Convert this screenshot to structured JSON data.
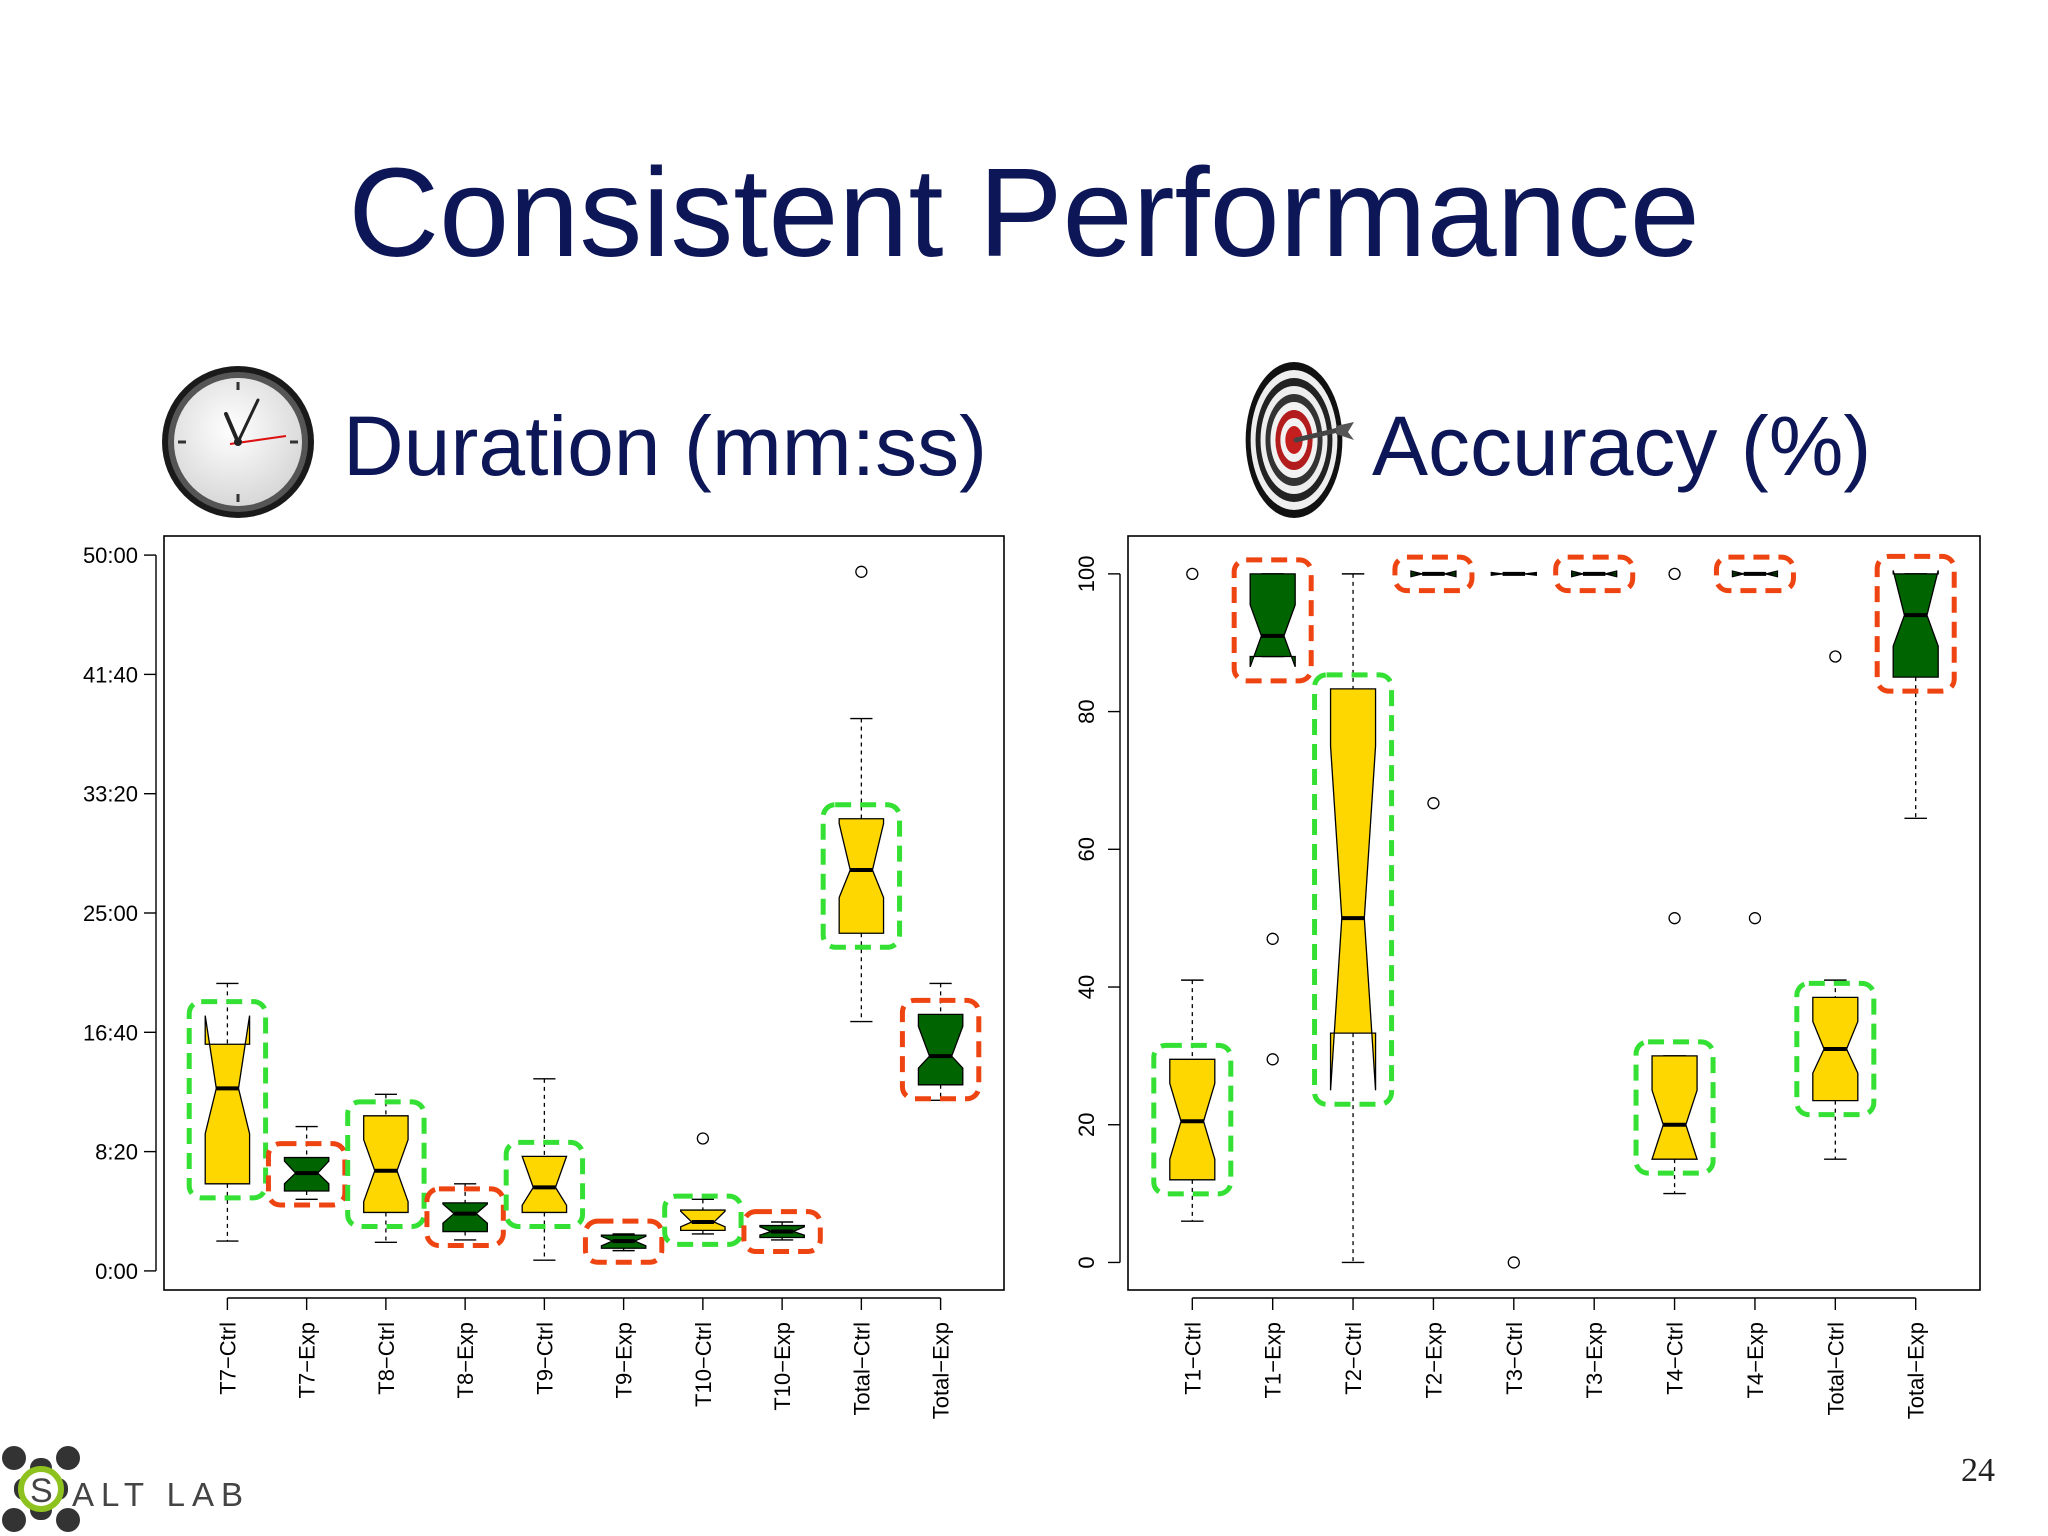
{
  "slide": {
    "title": "Consistent Performance",
    "page_number": "24",
    "logo_text": "ALT LAB"
  },
  "sections": {
    "duration": {
      "subtitle": "Duration (mm:ss)",
      "icon": "clock-icon"
    },
    "accuracy": {
      "subtitle": "Accuracy (%)",
      "icon": "target-icon"
    }
  },
  "colors": {
    "title": "#0d1657",
    "ctrl_fill": "#FFD700",
    "exp_fill": "#006400",
    "ctrl_highlight": "#33e033",
    "exp_highlight": "#ee4411"
  },
  "chart_data": [
    {
      "type": "box",
      "notched": true,
      "y_tick_labels": [
        "0:00",
        "8:20",
        "16:40",
        "25:00",
        "33:20",
        "41:40",
        "50:00"
      ],
      "y_ticks_seconds": [
        0,
        500,
        1000,
        1500,
        2000,
        2500,
        3000
      ],
      "ylim_seconds": [
        -80,
        3080
      ],
      "categories": [
        "T7−Ctrl",
        "T7−Exp",
        "T8−Ctrl",
        "T8−Exp",
        "T9−Ctrl",
        "T9−Exp",
        "T10−Ctrl",
        "T10−Exp",
        "Total−Ctrl",
        "Total−Exp"
      ],
      "boxes": [
        {
          "whisker_low": 125,
          "q1": 365,
          "median": 765,
          "q3": 950,
          "whisker_high": 1205,
          "notch_low": 575,
          "notch_high": 1070,
          "outliers": [],
          "group": "ctrl"
        },
        {
          "whisker_low": 300,
          "q1": 335,
          "median": 410,
          "q3": 475,
          "whisker_high": 605,
          "notch_low": 365,
          "notch_high": 460,
          "outliers": [],
          "group": "exp"
        },
        {
          "whisker_low": 120,
          "q1": 245,
          "median": 420,
          "q3": 650,
          "whisker_high": 740,
          "notch_low": 290,
          "notch_high": 550,
          "outliers": [],
          "group": "ctrl"
        },
        {
          "whisker_low": 130,
          "q1": 165,
          "median": 240,
          "q3": 285,
          "whisker_high": 365,
          "notch_low": 200,
          "notch_high": 280,
          "outliers": [],
          "group": "exp"
        },
        {
          "whisker_low": 45,
          "q1": 245,
          "median": 350,
          "q3": 480,
          "whisker_high": 805,
          "notch_low": 275,
          "notch_high": 480,
          "outliers": [],
          "group": "ctrl"
        },
        {
          "whisker_low": 85,
          "q1": 95,
          "median": 125,
          "q3": 150,
          "whisker_high": 155,
          "notch_low": 105,
          "notch_high": 145,
          "outliers": [],
          "group": "exp"
        },
        {
          "whisker_low": 155,
          "q1": 170,
          "median": 205,
          "q3": 255,
          "whisker_high": 300,
          "notch_low": 185,
          "notch_high": 250,
          "outliers": [
            555
          ],
          "group": "ctrl"
        },
        {
          "whisker_low": 130,
          "q1": 140,
          "median": 165,
          "q3": 190,
          "whisker_high": 205,
          "notch_low": 150,
          "notch_high": 185,
          "outliers": [],
          "group": "exp"
        },
        {
          "whisker_low": 1045,
          "q1": 1415,
          "median": 1680,
          "q3": 1895,
          "whisker_high": 2315,
          "notch_low": 1565,
          "notch_high": 1875,
          "outliers": [
            2930
          ],
          "group": "ctrl"
        },
        {
          "whisker_low": 715,
          "q1": 780,
          "median": 900,
          "q3": 1075,
          "whisker_high": 1205,
          "notch_low": 850,
          "notch_high": 1025,
          "outliers": [],
          "group": "exp"
        }
      ],
      "highlights": [
        "ctrl",
        "exp",
        "ctrl",
        "exp",
        "ctrl",
        "exp",
        "ctrl",
        "exp",
        "ctrl",
        "exp"
      ]
    },
    {
      "type": "box",
      "notched": true,
      "y_tick_labels": [
        "0",
        "20",
        "40",
        "60",
        "80",
        "100"
      ],
      "y_ticks": [
        0,
        20,
        40,
        60,
        80,
        100
      ],
      "ylim": [
        -4,
        105.5
      ],
      "categories": [
        "T1−Ctrl",
        "T1−Exp",
        "T2−Ctrl",
        "T2−Exp",
        "T3−Ctrl",
        "T3−Exp",
        "T4−Ctrl",
        "T4−Exp",
        "Total−Ctrl",
        "Total−Exp"
      ],
      "boxes": [
        {
          "whisker_low": 6,
          "q1": 12,
          "median": 20.5,
          "q3": 29.5,
          "whisker_high": 41,
          "notch_low": 15,
          "notch_high": 26,
          "outliers": [
            100
          ],
          "group": "ctrl"
        },
        {
          "whisker_low": 88,
          "q1": 88,
          "median": 91,
          "q3": 100,
          "whisker_high": 100,
          "notch_low": 86.5,
          "notch_high": 95.5,
          "outliers": [
            47,
            29.5
          ],
          "group": "exp"
        },
        {
          "whisker_low": 0,
          "q1": 33.3,
          "median": 50,
          "q3": 83.3,
          "whisker_high": 100,
          "notch_low": 25,
          "notch_high": 75,
          "outliers": [],
          "group": "ctrl"
        },
        {
          "whisker_low": 100,
          "q1": 100,
          "median": 100,
          "q3": 100,
          "whisker_high": 100,
          "notch_low": 99.6,
          "notch_high": 100.4,
          "outliers": [
            66.7
          ],
          "group": "exp"
        },
        {
          "whisker_low": 100,
          "q1": 100,
          "median": 100,
          "q3": 100,
          "whisker_high": 100,
          "notch_low": 99.8,
          "notch_high": 100.2,
          "outliers": [
            0
          ],
          "group": "ctrl"
        },
        {
          "whisker_low": 100,
          "q1": 100,
          "median": 100,
          "q3": 100,
          "whisker_high": 100,
          "notch_low": 99.6,
          "notch_high": 100.4,
          "outliers": [],
          "group": "exp"
        },
        {
          "whisker_low": 10,
          "q1": 15,
          "median": 20,
          "q3": 30,
          "whisker_high": 30,
          "notch_low": 15,
          "notch_high": 25,
          "outliers": [
            100,
            50
          ],
          "group": "ctrl"
        },
        {
          "whisker_low": 100,
          "q1": 100,
          "median": 100,
          "q3": 100,
          "whisker_high": 100,
          "notch_low": 99.6,
          "notch_high": 100.4,
          "outliers": [
            50
          ],
          "group": "exp"
        },
        {
          "whisker_low": 15,
          "q1": 23.5,
          "median": 31,
          "q3": 38.5,
          "whisker_high": 41,
          "notch_low": 27.5,
          "notch_high": 35,
          "outliers": [
            88
          ],
          "group": "ctrl"
        },
        {
          "whisker_low": 64.5,
          "q1": 85,
          "median": 94,
          "q3": 100,
          "whisker_high": 100,
          "notch_low": 89.5,
          "notch_high": 100.5,
          "outliers": [],
          "group": "exp"
        }
      ],
      "highlights": [
        "ctrl",
        "exp",
        "ctrl",
        "exp",
        "none",
        "exp",
        "ctrl",
        "exp",
        "ctrl",
        "exp"
      ]
    }
  ]
}
